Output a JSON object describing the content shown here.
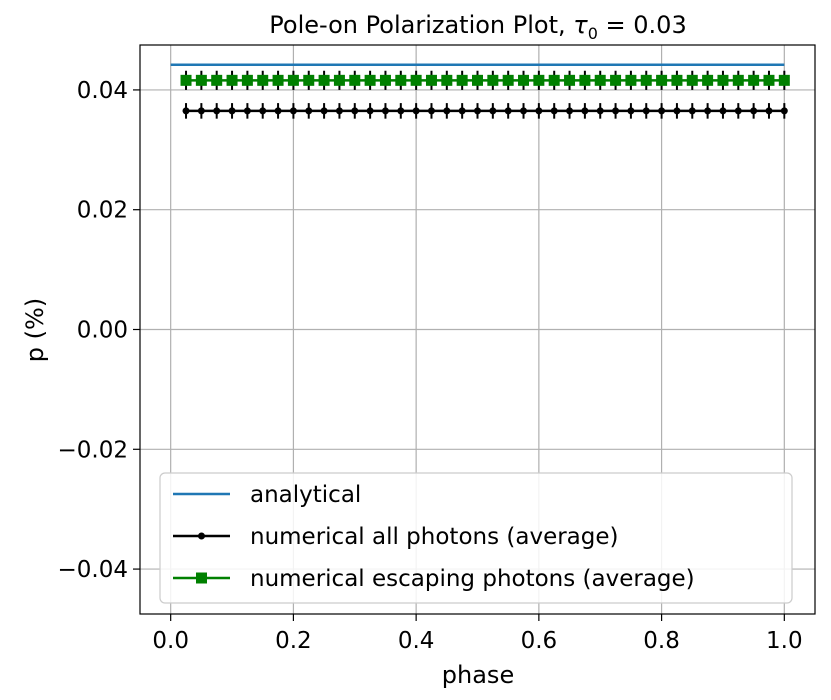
{
  "chart_data": {
    "type": "line",
    "title_main": "Pole-on Polarization Plot, ",
    "title_symbol": "τ",
    "title_subscript": "0",
    "title_rest": " = 0.03",
    "xlabel": "phase",
    "ylabel": "p (%)",
    "xlim": [
      -0.05,
      1.05
    ],
    "ylim": [
      -0.0475,
      0.0475
    ],
    "xticks": [
      0.0,
      0.2,
      0.4,
      0.6,
      0.8,
      1.0
    ],
    "xtick_labels": [
      "0.0",
      "0.2",
      "0.4",
      "0.6",
      "0.8",
      "1.0"
    ],
    "yticks": [
      -0.04,
      -0.02,
      0.0,
      0.02,
      0.04
    ],
    "ytick_labels": [
      "−0.04",
      "−0.02",
      "0.00",
      "0.02",
      "0.04"
    ],
    "grid": true,
    "legend_position": "lower-left",
    "series": [
      {
        "name": "analytical",
        "style": "line",
        "color": "#1f77b4",
        "x": [
          0.0,
          1.0
        ],
        "y": [
          0.0442,
          0.0442
        ]
      },
      {
        "name": "numerical all photons (average)",
        "style": "line-dot-errorbar",
        "color": "#000000",
        "x_start": 0.025,
        "x_end": 1.0,
        "count": 40,
        "y": 0.0365,
        "yerr": 0.0013
      },
      {
        "name": "numerical escaping photons (average)",
        "style": "line-square-errorbar",
        "color": "#008000",
        "x_start": 0.025,
        "x_end": 1.0,
        "count": 40,
        "y": 0.0416,
        "yerr": 0.0016
      }
    ]
  }
}
